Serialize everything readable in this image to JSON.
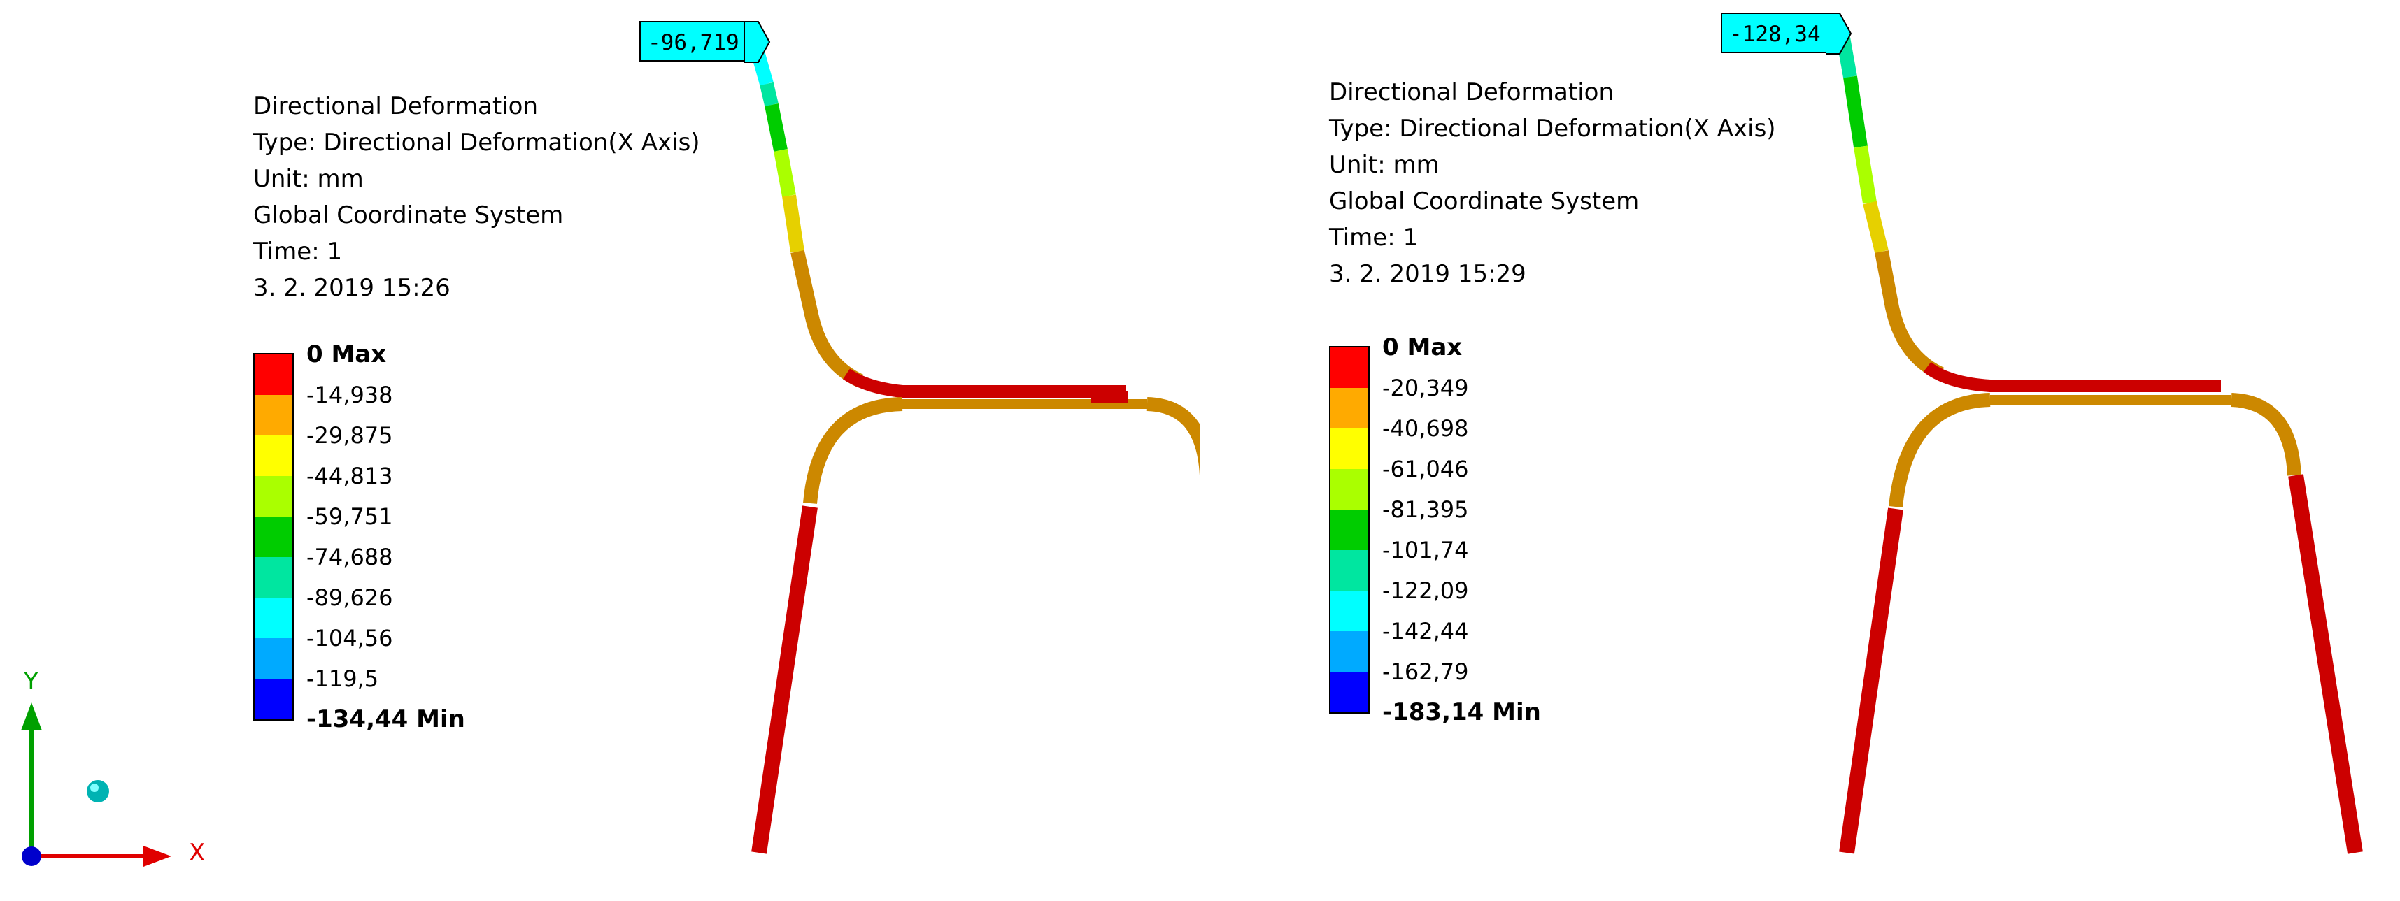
{
  "panels": [
    {
      "info": {
        "title": "Directional Deformation",
        "type": "Type: Directional Deformation(X Axis)",
        "unit": "Unit: mm",
        "coord": "Global Coordinate System",
        "time": "Time: 1",
        "date": "3. 2. 2019 15:26"
      },
      "legend": [
        "0 Max",
        "-14,938",
        "-29,875",
        "-44,813",
        "-59,751",
        "-74,688",
        "-89,626",
        "-104,56",
        "-119,5",
        "-134,44 Min"
      ],
      "probe": "-96,719"
    },
    {
      "info": {
        "title": "Directional Deformation",
        "type": "Type: Directional Deformation(X Axis)",
        "unit": "Unit: mm",
        "coord": "Global Coordinate System",
        "time": "Time: 1",
        "date": "3. 2. 2019 15:29"
      },
      "legend": [
        "0 Max",
        "-20,349",
        "-40,698",
        "-61,046",
        "-81,395",
        "-101,74",
        "-122,09",
        "-142,44",
        "-162,79",
        "-183,14 Min"
      ],
      "probe": "-128,34"
    }
  ],
  "legend_colors": [
    "#ff0000",
    "#ffaa00",
    "#ffff00",
    "#aaff00",
    "#00cc00",
    "#00e6a0",
    "#00ffff",
    "#00aaff",
    "#0000ff"
  ],
  "triad": {
    "x": "X",
    "y": "Y",
    "z": "Z"
  }
}
